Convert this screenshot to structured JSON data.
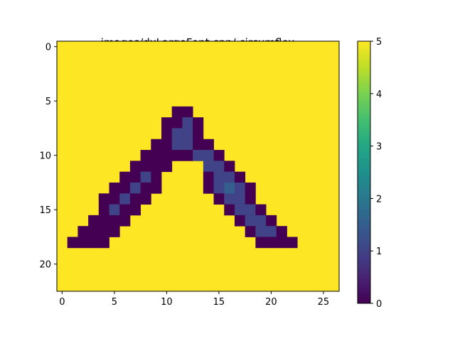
{
  "chart_data": {
    "type": "heatmap",
    "title": "images/dxLargeFont.cpp/ circumflex",
    "xlabel": "",
    "ylabel": "",
    "n_cols": 27,
    "n_rows": 23,
    "xlim": [
      -0.5,
      26.5
    ],
    "ylim": [
      22.5,
      -0.5
    ],
    "x_ticks": [
      0,
      5,
      10,
      15,
      20,
      25
    ],
    "y_ticks": [
      0,
      5,
      10,
      15,
      20
    ],
    "colormap": "viridis",
    "vmin": 0,
    "vmax": 5,
    "colorbar_ticks": [
      0,
      1,
      2,
      3,
      4,
      5
    ],
    "background_value": 5,
    "cells": [
      [
        6,
        11,
        0
      ],
      [
        6,
        12,
        0
      ],
      [
        7,
        10,
        0
      ],
      [
        7,
        11,
        0
      ],
      [
        7,
        12,
        1
      ],
      [
        7,
        13,
        0
      ],
      [
        8,
        10,
        0
      ],
      [
        8,
        11,
        1
      ],
      [
        8,
        12,
        1
      ],
      [
        8,
        13,
        0
      ],
      [
        9,
        9,
        0
      ],
      [
        9,
        10,
        0
      ],
      [
        9,
        11,
        1
      ],
      [
        9,
        12,
        1
      ],
      [
        9,
        13,
        0
      ],
      [
        9,
        14,
        0
      ],
      [
        10,
        8,
        0
      ],
      [
        10,
        9,
        0
      ],
      [
        10,
        10,
        0
      ],
      [
        10,
        11,
        0
      ],
      [
        10,
        12,
        0
      ],
      [
        10,
        13,
        1
      ],
      [
        10,
        14,
        1
      ],
      [
        10,
        15,
        0
      ],
      [
        11,
        7,
        0
      ],
      [
        11,
        8,
        0
      ],
      [
        11,
        9,
        0
      ],
      [
        11,
        10,
        0
      ],
      [
        11,
        14,
        1
      ],
      [
        11,
        15,
        1
      ],
      [
        11,
        16,
        0
      ],
      [
        12,
        6,
        0
      ],
      [
        12,
        7,
        0
      ],
      [
        12,
        8,
        1
      ],
      [
        12,
        9,
        0
      ],
      [
        12,
        14,
        0
      ],
      [
        12,
        15,
        1
      ],
      [
        12,
        16,
        1
      ],
      [
        12,
        17,
        0
      ],
      [
        13,
        5,
        0
      ],
      [
        13,
        6,
        0
      ],
      [
        13,
        7,
        1
      ],
      [
        13,
        8,
        0
      ],
      [
        13,
        9,
        0
      ],
      [
        13,
        14,
        0
      ],
      [
        13,
        15,
        1
      ],
      [
        13,
        16,
        1.5
      ],
      [
        13,
        17,
        1
      ],
      [
        13,
        18,
        0
      ],
      [
        14,
        4,
        0
      ],
      [
        14,
        5,
        0
      ],
      [
        14,
        6,
        1
      ],
      [
        14,
        7,
        0
      ],
      [
        14,
        8,
        0
      ],
      [
        14,
        15,
        0
      ],
      [
        14,
        16,
        1
      ],
      [
        14,
        17,
        1
      ],
      [
        14,
        18,
        0
      ],
      [
        15,
        4,
        0
      ],
      [
        15,
        5,
        1
      ],
      [
        15,
        6,
        0
      ],
      [
        15,
        7,
        0
      ],
      [
        15,
        16,
        0
      ],
      [
        15,
        17,
        1
      ],
      [
        15,
        18,
        1
      ],
      [
        15,
        19,
        0
      ],
      [
        16,
        3,
        0
      ],
      [
        16,
        4,
        0
      ],
      [
        16,
        5,
        0
      ],
      [
        16,
        6,
        0
      ],
      [
        16,
        17,
        0
      ],
      [
        16,
        18,
        1
      ],
      [
        16,
        19,
        1
      ],
      [
        16,
        20,
        0
      ],
      [
        17,
        2,
        0
      ],
      [
        17,
        3,
        0
      ],
      [
        17,
        4,
        0
      ],
      [
        17,
        5,
        0
      ],
      [
        17,
        18,
        0
      ],
      [
        17,
        19,
        1
      ],
      [
        17,
        20,
        1
      ],
      [
        17,
        21,
        0
      ],
      [
        18,
        1,
        0
      ],
      [
        18,
        2,
        0
      ],
      [
        18,
        3,
        0
      ],
      [
        18,
        4,
        0
      ],
      [
        18,
        19,
        0
      ],
      [
        18,
        20,
        0
      ],
      [
        18,
        21,
        0
      ],
      [
        18,
        22,
        0
      ]
    ]
  }
}
